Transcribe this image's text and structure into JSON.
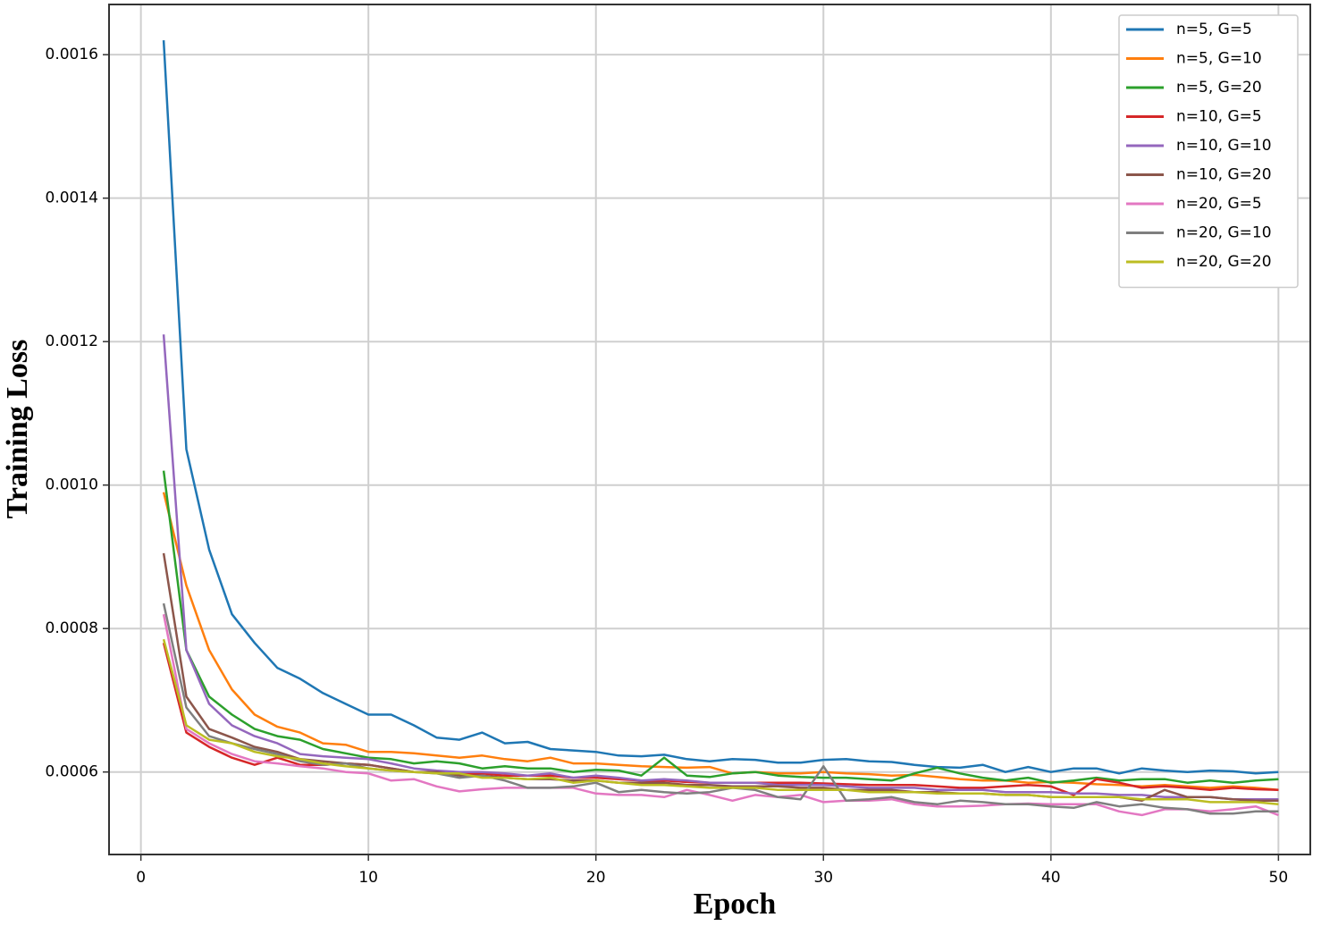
{
  "chart_data": {
    "type": "line",
    "x_label": "Epoch",
    "y_label": "Training Loss",
    "x": [
      1,
      2,
      3,
      4,
      5,
      6,
      7,
      8,
      9,
      10,
      11,
      12,
      13,
      14,
      15,
      16,
      17,
      18,
      19,
      20,
      21,
      22,
      23,
      24,
      25,
      26,
      27,
      28,
      29,
      30,
      31,
      32,
      33,
      34,
      35,
      36,
      37,
      38,
      39,
      40,
      41,
      42,
      43,
      44,
      45,
      46,
      47,
      48,
      49,
      50
    ],
    "xlim": [
      -1.4,
      51.4
    ],
    "xticks": [
      0,
      10,
      20,
      30,
      40,
      50
    ],
    "ylim": [
      0.000485,
      0.00167
    ],
    "yticks": [
      0.0006,
      0.0008,
      {
        "value": 0.001,
        "label": "0.0010"
      },
      0.0012,
      0.0014,
      0.0016
    ],
    "grid": true,
    "legend": "upper right",
    "series": [
      {
        "name": "n=5, G=5",
        "color": "#1f77b4",
        "values": [
          0.00162,
          0.00105,
          0.00091,
          0.00082,
          0.00078,
          0.000745,
          0.00073,
          0.00071,
          0.000695,
          0.00068,
          0.00068,
          0.000665,
          0.000648,
          0.000645,
          0.000655,
          0.00064,
          0.000642,
          0.000632,
          0.00063,
          0.000628,
          0.000623,
          0.000622,
          0.000624,
          0.000618,
          0.000615,
          0.000618,
          0.000617,
          0.000613,
          0.000613,
          0.000617,
          0.000618,
          0.000615,
          0.000614,
          0.00061,
          0.000607,
          0.000606,
          0.00061,
          0.0006,
          0.000607,
          0.0006,
          0.000605,
          0.000605,
          0.000598,
          0.000605,
          0.000602,
          0.0006,
          0.000602,
          0.000601,
          0.000598,
          0.0006
        ]
      },
      {
        "name": "n=5, G=10",
        "color": "#ff7f0e",
        "values": [
          0.00099,
          0.00086,
          0.00077,
          0.000715,
          0.00068,
          0.000663,
          0.000655,
          0.00064,
          0.000638,
          0.000628,
          0.000628,
          0.000626,
          0.000623,
          0.00062,
          0.000623,
          0.000618,
          0.000615,
          0.00062,
          0.000612,
          0.000612,
          0.00061,
          0.000608,
          0.000607,
          0.000606,
          0.000607,
          0.000598,
          0.0006,
          0.000598,
          0.000598,
          0.0006,
          0.000598,
          0.000597,
          0.000595,
          0.000596,
          0.000593,
          0.00059,
          0.000588,
          0.000588,
          0.000585,
          0.000586,
          0.000585,
          0.000583,
          0.000582,
          0.00058,
          0.000582,
          0.00058,
          0.000578,
          0.00058,
          0.000578,
          0.000575
        ]
      },
      {
        "name": "n=5, G=20",
        "color": "#2ca02c",
        "values": [
          0.00102,
          0.00077,
          0.000705,
          0.00068,
          0.00066,
          0.00065,
          0.000645,
          0.000632,
          0.000626,
          0.00062,
          0.000618,
          0.000612,
          0.000615,
          0.000612,
          0.000605,
          0.000608,
          0.000605,
          0.000605,
          0.0006,
          0.000603,
          0.000602,
          0.000595,
          0.00062,
          0.000595,
          0.000593,
          0.000598,
          0.0006,
          0.000595,
          0.000593,
          0.000592,
          0.000592,
          0.00059,
          0.000588,
          0.000598,
          0.000606,
          0.000598,
          0.000592,
          0.000588,
          0.000592,
          0.000585,
          0.000588,
          0.000592,
          0.000588,
          0.00059,
          0.00059,
          0.000585,
          0.000588,
          0.000585,
          0.000588,
          0.00059
        ]
      },
      {
        "name": "n=10, G=5",
        "color": "#d62728",
        "values": [
          0.00078,
          0.000655,
          0.000635,
          0.00062,
          0.00061,
          0.00062,
          0.00061,
          0.00061,
          0.000612,
          0.00061,
          0.000605,
          0.0006,
          0.0006,
          0.000598,
          0.000598,
          0.000595,
          0.000595,
          0.000595,
          0.000592,
          0.000592,
          0.00059,
          0.000588,
          0.000588,
          0.000586,
          0.000585,
          0.000585,
          0.000585,
          0.000585,
          0.000585,
          0.000584,
          0.000583,
          0.000582,
          0.000582,
          0.000582,
          0.00058,
          0.000578,
          0.000578,
          0.00058,
          0.000582,
          0.00058,
          0.000568,
          0.00059,
          0.000585,
          0.000578,
          0.00058,
          0.000578,
          0.000575,
          0.000578,
          0.000576,
          0.000575
        ]
      },
      {
        "name": "n=10, G=10",
        "color": "#9467bd",
        "values": [
          0.00121,
          0.00077,
          0.000695,
          0.000665,
          0.00065,
          0.00064,
          0.000625,
          0.000622,
          0.00062,
          0.000618,
          0.000612,
          0.000605,
          0.000602,
          0.0006,
          0.0006,
          0.000598,
          0.000595,
          0.000598,
          0.000592,
          0.000595,
          0.000592,
          0.000588,
          0.00059,
          0.000588,
          0.000585,
          0.000585,
          0.000585,
          0.000582,
          0.000582,
          0.000582,
          0.00058,
          0.000578,
          0.000578,
          0.000578,
          0.000575,
          0.000575,
          0.000575,
          0.000572,
          0.000572,
          0.000572,
          0.00057,
          0.00057,
          0.000568,
          0.000568,
          0.000565,
          0.000565,
          0.000565,
          0.000562,
          0.000562,
          0.000562
        ]
      },
      {
        "name": "n=10, G=20",
        "color": "#8c564b",
        "values": [
          0.000905,
          0.000705,
          0.00066,
          0.000648,
          0.000635,
          0.000628,
          0.000618,
          0.000615,
          0.000612,
          0.00061,
          0.000605,
          0.0006,
          0.0006,
          0.000595,
          0.000595,
          0.000592,
          0.00059,
          0.00059,
          0.000588,
          0.000588,
          0.000585,
          0.000585,
          0.000585,
          0.000582,
          0.000582,
          0.00058,
          0.00058,
          0.00058,
          0.000578,
          0.000578,
          0.000575,
          0.000575,
          0.000575,
          0.000572,
          0.000572,
          0.00057,
          0.00057,
          0.000568,
          0.000568,
          0.000565,
          0.000565,
          0.000565,
          0.000565,
          0.00056,
          0.000575,
          0.000565,
          0.000565,
          0.000562,
          0.00056,
          0.00056
        ]
      },
      {
        "name": "n=20, G=5",
        "color": "#e377c2",
        "values": [
          0.00082,
          0.00066,
          0.00064,
          0.000625,
          0.000615,
          0.000612,
          0.000608,
          0.000605,
          0.0006,
          0.000598,
          0.000588,
          0.00059,
          0.00058,
          0.000573,
          0.000576,
          0.000578,
          0.000578,
          0.000578,
          0.000578,
          0.00057,
          0.000568,
          0.000568,
          0.000565,
          0.000575,
          0.000568,
          0.00056,
          0.000568,
          0.000565,
          0.000568,
          0.000558,
          0.00056,
          0.00056,
          0.000562,
          0.000555,
          0.000552,
          0.000552,
          0.000553,
          0.000555,
          0.000556,
          0.000555,
          0.000555,
          0.000555,
          0.000545,
          0.00054,
          0.000548,
          0.000548,
          0.000545,
          0.000548,
          0.000552,
          0.00054
        ]
      },
      {
        "name": "n=20, G=10",
        "color": "#7f7f7f",
        "values": [
          0.000835,
          0.00069,
          0.00065,
          0.00064,
          0.000632,
          0.000625,
          0.000615,
          0.00061,
          0.000612,
          0.000605,
          0.000602,
          0.0006,
          0.000598,
          0.000592,
          0.000595,
          0.000588,
          0.000578,
          0.000578,
          0.00058,
          0.000585,
          0.000572,
          0.000575,
          0.000572,
          0.00057,
          0.000572,
          0.000578,
          0.000575,
          0.000565,
          0.000562,
          0.000608,
          0.00056,
          0.000562,
          0.000565,
          0.000558,
          0.000555,
          0.00056,
          0.000558,
          0.000555,
          0.000555,
          0.000552,
          0.00055,
          0.000558,
          0.000552,
          0.000555,
          0.00055,
          0.000548,
          0.000542,
          0.000542,
          0.000545,
          0.000545
        ]
      },
      {
        "name": "n=20, G=20",
        "color": "#bcbd22",
        "values": [
          0.000785,
          0.000665,
          0.000645,
          0.00064,
          0.000628,
          0.000622,
          0.000618,
          0.000612,
          0.000608,
          0.000605,
          0.000602,
          0.0006,
          0.000598,
          0.000598,
          0.000592,
          0.000592,
          0.00059,
          0.000592,
          0.000585,
          0.000588,
          0.000585,
          0.000582,
          0.000582,
          0.00058,
          0.000578,
          0.000578,
          0.000578,
          0.000575,
          0.000575,
          0.000575,
          0.000575,
          0.000572,
          0.000572,
          0.000572,
          0.00057,
          0.00057,
          0.00057,
          0.000568,
          0.000568,
          0.000565,
          0.000565,
          0.000565,
          0.000565,
          0.000562,
          0.000562,
          0.000562,
          0.000558,
          0.000558,
          0.000558,
          0.000555
        ]
      }
    ]
  }
}
